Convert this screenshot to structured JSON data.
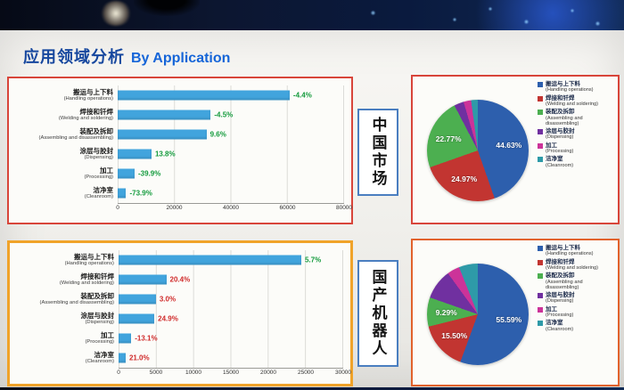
{
  "title": {
    "cn": "应用领域分析",
    "en": "By Application"
  },
  "panels": [
    {
      "side_label": "中国市场"
    },
    {
      "side_label": "国产机器人"
    }
  ],
  "chart_data": [
    {
      "id": "bar-china-market",
      "type": "bar",
      "orientation": "horizontal",
      "categories": [
        "搬运与上下料",
        "焊接和钎焊",
        "装配及拆卸",
        "涂层与胶封",
        "加工",
        "洁净室"
      ],
      "categories_en": [
        "Handling operations",
        "Welding and soldering",
        "Assembling and disassembling",
        "Dispensing",
        "Processing",
        "Cleanroom"
      ],
      "values": [
        61000,
        33000,
        31500,
        12000,
        6000,
        3000
      ],
      "data_labels": [
        "-4.4%",
        "-4.5%",
        "9.6%",
        "13.8%",
        "-39.9%",
        "-73.9%"
      ],
      "label_colors": [
        "#149b3d",
        "#149b3d",
        "#149b3d",
        "#149b3d",
        "#149b3d",
        "#149b3d"
      ],
      "xlim": [
        0,
        80000
      ],
      "xticks": [
        0,
        20000,
        40000,
        60000,
        80000
      ],
      "bar_color": "#41a4dd",
      "grid": true
    },
    {
      "id": "pie-china-market",
      "type": "pie",
      "legend_position": "right",
      "slices": [
        {
          "label": "搬运与上下料",
          "label_en": "Handling operations",
          "value": 44.63,
          "color": "#2d5fad",
          "data_label": "44.63%"
        },
        {
          "label": "焊接和钎焊",
          "label_en": "Welding and soldering",
          "value": 24.97,
          "color": "#c23531",
          "data_label": "24.97%"
        },
        {
          "label": "装配及拆卸",
          "label_en": "Assembling and disassembling",
          "value": 22.77,
          "color": "#4caf50",
          "data_label": "22.77%"
        },
        {
          "label": "涂层与胶封",
          "label_en": "Dispensing",
          "value": 3.1,
          "color": "#7030a0",
          "data_label": ""
        },
        {
          "label": "加工",
          "label_en": "Processing",
          "value": 2.4,
          "color": "#cc3399",
          "data_label": ""
        },
        {
          "label": "洁净室",
          "label_en": "Cleanroom",
          "value": 2.13,
          "color": "#2e9aa8",
          "data_label": ""
        }
      ]
    },
    {
      "id": "bar-domestic-robots",
      "type": "bar",
      "orientation": "horizontal",
      "categories": [
        "搬运与上下料",
        "焊接和钎焊",
        "装配及拆卸",
        "涂层与胶封",
        "加工",
        "洁净室"
      ],
      "categories_en": [
        "Handling operations",
        "Welding and soldering",
        "Assembling and disassembling",
        "Dispensing",
        "Processing",
        "Cleanroom"
      ],
      "values": [
        24500,
        6400,
        5000,
        4800,
        1700,
        950
      ],
      "data_labels": [
        "5.7%",
        "20.4%",
        "3.0%",
        "24.9%",
        "-13.1%",
        "21.0%"
      ],
      "label_colors": [
        "#149b3d",
        "#d02b2b",
        "#d02b2b",
        "#d02b2b",
        "#d02b2b",
        "#d02b2b"
      ],
      "xlim": [
        0,
        30000
      ],
      "xticks": [
        0,
        5000,
        10000,
        15000,
        20000,
        25000,
        30000
      ],
      "bar_color": "#41a4dd",
      "grid": true
    },
    {
      "id": "pie-domestic-robots",
      "type": "pie",
      "legend_position": "right",
      "slices": [
        {
          "label": "搬运与上下料",
          "label_en": "Handling operations",
          "value": 55.59,
          "color": "#2d5fad",
          "data_label": "55.59%"
        },
        {
          "label": "焊接和钎焊",
          "label_en": "Welding and soldering",
          "value": 15.5,
          "color": "#c23531",
          "data_label": "15.50%"
        },
        {
          "label": "装配及拆卸",
          "label_en": "Assembling and disassembling",
          "value": 9.29,
          "color": "#4caf50",
          "data_label": "9.29%"
        },
        {
          "label": "涂层与胶封",
          "label_en": "Dispensing",
          "value": 9.6,
          "color": "#7030a0",
          "data_label": ""
        },
        {
          "label": "加工",
          "label_en": "Processing",
          "value": 4.0,
          "color": "#cc3399",
          "data_label": ""
        },
        {
          "label": "洁净室",
          "label_en": "Cleanroom",
          "value": 6.02,
          "color": "#2e9aa8",
          "data_label": ""
        }
      ]
    }
  ]
}
